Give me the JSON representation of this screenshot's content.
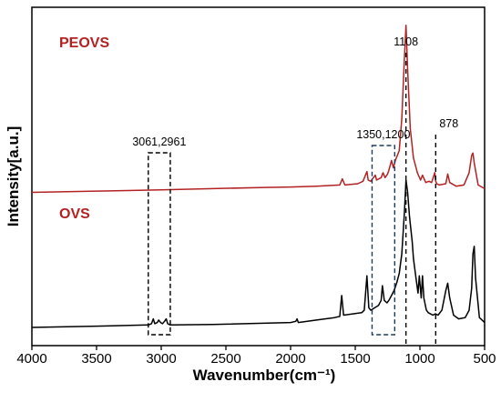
{
  "chart_data": {
    "type": "line",
    "title": "",
    "xlabel": "Wavenumber(cm⁻¹)",
    "ylabel": "Intensity[a.u.]",
    "xlim": [
      4000,
      500
    ],
    "x_reversed": true,
    "ylim": [
      0,
      1
    ],
    "y_ticks_shown": false,
    "grid": false,
    "x_ticks": [
      "4000",
      "3500",
      "3000",
      "2500",
      "2000",
      "1500",
      "1000",
      "500"
    ],
    "legend": [
      {
        "name": "PEOVS",
        "color": "#b22222",
        "placement": "above-curve"
      },
      {
        "name": "OVS",
        "color": "#b22222",
        "placement": "above-curve"
      }
    ],
    "series": [
      {
        "name": "PEOVS",
        "color": "#b22222",
        "offset": 0.55,
        "x": [
          4000,
          3500,
          3000,
          2600,
          2200,
          2000,
          1800,
          1620,
          1600,
          1580,
          1480,
          1440,
          1410,
          1400,
          1380,
          1345,
          1335,
          1300,
          1285,
          1270,
          1250,
          1240,
          1220,
          1205,
          1190,
          1160,
          1140,
          1120,
          1108,
          1095,
          1075,
          1050,
          1020,
          995,
          980,
          955,
          930,
          910,
          885,
          878,
          870,
          850,
          800,
          785,
          770,
          720,
          660,
          620,
          600,
          590,
          580,
          550,
          500
        ],
        "y": [
          0.0,
          0.005,
          0.01,
          0.015,
          0.02,
          0.022,
          0.025,
          0.03,
          0.055,
          0.03,
          0.035,
          0.045,
          0.085,
          0.05,
          0.045,
          0.07,
          0.05,
          0.06,
          0.08,
          0.06,
          0.075,
          0.09,
          0.13,
          0.1,
          0.13,
          0.17,
          0.3,
          0.55,
          0.68,
          0.5,
          0.26,
          0.14,
          0.08,
          0.05,
          0.07,
          0.04,
          0.045,
          0.04,
          0.08,
          0.045,
          0.035,
          0.03,
          0.035,
          0.075,
          0.04,
          0.025,
          0.03,
          0.08,
          0.15,
          0.16,
          0.12,
          0.03,
          0.015
        ]
      },
      {
        "name": "OVS",
        "color": "#000000",
        "offset": 0.0,
        "x": [
          4000,
          3500,
          3100,
          3075,
          3061,
          3050,
          3030,
          3020,
          3005,
          2990,
          2975,
          2961,
          2950,
          2930,
          2600,
          2000,
          1960,
          1950,
          1940,
          1800,
          1660,
          1620,
          1605,
          1590,
          1450,
          1430,
          1410,
          1395,
          1380,
          1320,
          1300,
          1290,
          1275,
          1255,
          1240,
          1220,
          1200,
          1180,
          1160,
          1140,
          1120,
          1108,
          1095,
          1080,
          1060,
          1050,
          1040,
          1030,
          1015,
          1005,
          990,
          980,
          970,
          950,
          935,
          900,
          880,
          860,
          830,
          800,
          785,
          770,
          740,
          700,
          650,
          620,
          600,
          590,
          580,
          570,
          540,
          500
        ],
        "y": [
          0.0,
          0.005,
          0.01,
          0.015,
          0.035,
          0.015,
          0.02,
          0.03,
          0.02,
          0.015,
          0.025,
          0.035,
          0.015,
          0.01,
          0.012,
          0.02,
          0.025,
          0.035,
          0.02,
          0.03,
          0.04,
          0.045,
          0.13,
          0.05,
          0.06,
          0.07,
          0.21,
          0.08,
          0.07,
          0.09,
          0.11,
          0.17,
          0.11,
          0.1,
          0.11,
          0.13,
          0.15,
          0.18,
          0.22,
          0.3,
          0.47,
          0.6,
          0.55,
          0.45,
          0.35,
          0.28,
          0.24,
          0.2,
          0.14,
          0.21,
          0.12,
          0.21,
          0.12,
          0.07,
          0.06,
          0.05,
          0.055,
          0.05,
          0.07,
          0.15,
          0.18,
          0.12,
          0.05,
          0.035,
          0.04,
          0.07,
          0.16,
          0.3,
          0.33,
          0.2,
          0.04,
          0.02
        ]
      }
    ],
    "annotations": [
      {
        "label": "3061,2961",
        "type": "dashed-box",
        "x_range": [
          3100,
          2930
        ]
      },
      {
        "label": "1350,1200",
        "type": "dashed-box",
        "x_range": [
          1370,
          1195
        ],
        "color": "#1f3a5f"
      },
      {
        "label": "1108",
        "type": "dashed-vline",
        "x": 1108
      },
      {
        "label": "878",
        "type": "dashed-vline",
        "x": 878
      }
    ]
  }
}
